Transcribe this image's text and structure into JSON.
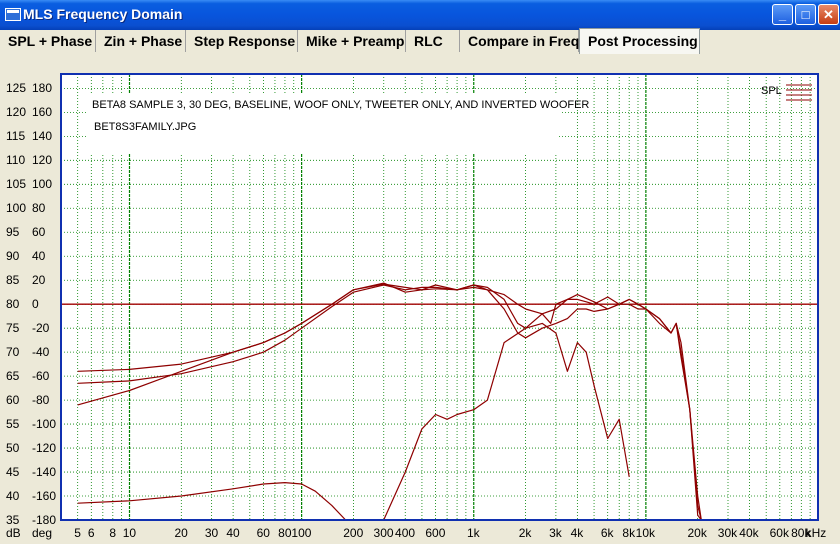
{
  "window": {
    "title": "MLS Frequency Domain",
    "buttons": {
      "minimize": "_",
      "maximize": "□",
      "close": "✕"
    }
  },
  "tabs": [
    {
      "label": "SPL + Phase",
      "active": false
    },
    {
      "label": "Zin + Phase",
      "active": false
    },
    {
      "label": "Step Response",
      "active": false
    },
    {
      "label": "Mike + Preamp",
      "active": false
    },
    {
      "label": "RLC",
      "active": false
    },
    {
      "label": "Compare in Freq",
      "active": false
    },
    {
      "label": "Post Processing",
      "active": true
    }
  ],
  "chart_data": {
    "type": "line",
    "title": "BETA8 SAMPLE 3, 30 DEG, BASELINE, WOOF ONLY, TWEETER ONLY, AND INVERTED WOOFER",
    "subtitle": "BET8S3FAMILY.JPG",
    "x_scale": "log",
    "xlim": [
      4,
      100000
    ],
    "ylim": [
      35,
      128
    ],
    "db_ticks": [
      "125",
      "120",
      "115",
      "110",
      "105",
      "100",
      "95",
      "90",
      "85",
      "80",
      "75",
      "70",
      "65",
      "60",
      "55",
      "50",
      "45",
      "40",
      "35"
    ],
    "deg_ticks": [
      "180",
      "160",
      "140",
      "120",
      "100",
      "80",
      "60",
      "40",
      "20",
      "0",
      "-20",
      "-40",
      "-60",
      "-80",
      "-100",
      "-120",
      "-140",
      "-160",
      "-180"
    ],
    "y_unit_labels": {
      "db": "dB",
      "deg": "deg"
    },
    "x_tick_labels": [
      "5",
      "6",
      "8",
      "10",
      "20",
      "30",
      "40",
      "60",
      "80",
      "100",
      "200",
      "300",
      "400",
      "600",
      "1k",
      "2k",
      "3k",
      "4k",
      "6k",
      "8k",
      "10k",
      "20k",
      "30k",
      "40k",
      "60k",
      "80k",
      "kHz"
    ],
    "x_tick_values": [
      5,
      6,
      8,
      10,
      20,
      30,
      40,
      60,
      80,
      100,
      200,
      300,
      400,
      600,
      1000,
      2000,
      3000,
      4000,
      6000,
      8000,
      10000,
      20000,
      30000,
      40000,
      60000,
      80000,
      null
    ],
    "legend": {
      "label": "SPL",
      "placement": "top-right"
    },
    "grid": true,
    "reference_line": {
      "axis": "deg",
      "value": 0
    },
    "series": [
      {
        "x": [
          5,
          10,
          20,
          40,
          60,
          80,
          100,
          150,
          200,
          300,
          400,
          500,
          600,
          800,
          1000,
          1200,
          1500,
          1800,
          2000,
          2500,
          3000,
          3500,
          4000,
          4500,
          5000,
          6000,
          7000,
          8000,
          9000,
          10000,
          12000,
          14000,
          15000,
          16000,
          18000,
          20000,
          21000,
          22000
        ],
        "y": [
          66,
          66.4,
          67.5,
          70,
          72,
          74,
          76,
          80,
          83,
          84.2,
          83.5,
          83,
          83.2,
          83,
          83.5,
          83,
          79,
          74,
          73,
          75,
          76,
          77,
          79,
          79,
          78.5,
          79,
          80,
          81,
          80,
          79,
          77,
          74,
          76,
          70,
          58,
          38,
          35,
          35
        ]
      },
      {
        "x": [
          5,
          10,
          20,
          40,
          60,
          80,
          100,
          150,
          200,
          300,
          400,
          500,
          600,
          800,
          1000,
          1200,
          1500,
          1800,
          2000,
          2500,
          3000,
          3500,
          4000,
          4500,
          5000,
          6000,
          7000,
          8000
        ],
        "y": [
          59,
          62,
          66,
          70,
          72,
          74,
          76,
          80,
          83,
          84.4,
          82.5,
          83,
          84,
          83,
          84,
          83.5,
          81,
          76,
          75,
          76,
          74,
          66,
          72,
          70,
          63,
          52,
          56,
          44
        ]
      },
      {
        "x": [
          5,
          10,
          20,
          40,
          60,
          80,
          100,
          150,
          200,
          300,
          400,
          500,
          600,
          800,
          1000,
          1200,
          1500,
          1800,
          2000,
          2500,
          2800,
          3000,
          3500,
          4000,
          4500,
          5000,
          6000,
          7000,
          8000,
          9000,
          10000,
          12000,
          14000,
          15000,
          16000,
          18000,
          20000,
          21000,
          22000
        ],
        "y": [
          63.5,
          64,
          65.5,
          68,
          70,
          72.5,
          75,
          79.5,
          82.5,
          84,
          83,
          83.5,
          83.5,
          83,
          84,
          83,
          82,
          80,
          79,
          78,
          76,
          80,
          81,
          81,
          80.5,
          80,
          81.5,
          80,
          81,
          80,
          79,
          76,
          74,
          76,
          69,
          58,
          40,
          35,
          35
        ]
      },
      {
        "x": [
          5,
          10,
          20,
          40,
          60,
          80,
          100,
          120,
          150,
          180,
          200,
          300,
          400,
          500,
          600,
          700,
          800,
          1000,
          1200,
          1500,
          2000,
          2500,
          3000,
          3500,
          4000,
          5000,
          6000,
          7000,
          8000,
          9000,
          10000,
          12000,
          14000,
          15000,
          16000,
          18000,
          20000,
          21000
        ],
        "y": [
          38.5,
          39,
          40,
          41.5,
          42.5,
          42.8,
          42.5,
          41,
          38,
          35,
          35,
          35,
          45,
          54,
          57,
          56,
          57,
          58,
          60,
          72,
          75,
          78,
          79,
          81,
          82,
          80.5,
          79,
          80,
          80,
          79,
          79,
          77,
          74,
          76,
          72,
          58,
          36,
          35
        ]
      }
    ]
  },
  "colors": {
    "series": "#8e0000",
    "zero_line": "#a00000",
    "grid": "#008000",
    "plot_bg": "#ffffff",
    "frame": "#1030b0"
  }
}
